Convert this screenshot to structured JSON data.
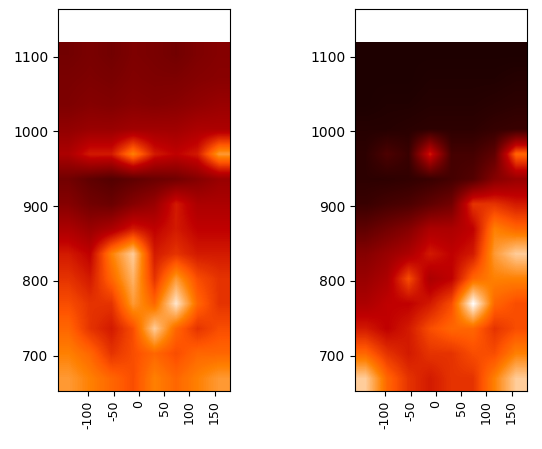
{
  "chart_data": [
    {
      "type": "heatmap",
      "xlim": [
        -160,
        180
      ],
      "ylim": [
        653,
        1164
      ],
      "xticks": [
        -100,
        -50,
        0,
        50,
        100,
        150
      ],
      "yticks": [
        700,
        800,
        900,
        1000,
        1100
      ],
      "x_range": [
        -160,
        180
      ],
      "y_range": [
        653,
        1120
      ],
      "color_range": [
        0,
        1
      ],
      "cells": [
        [
          0.3,
          0.32,
          0.3,
          0.33,
          0.32,
          0.3,
          0.33,
          0.35
        ],
        [
          0.32,
          0.33,
          0.32,
          0.34,
          0.33,
          0.33,
          0.35,
          0.36
        ],
        [
          0.33,
          0.35,
          0.34,
          0.36,
          0.35,
          0.36,
          0.38,
          0.4
        ],
        [
          0.38,
          0.4,
          0.4,
          0.42,
          0.42,
          0.42,
          0.45,
          0.45
        ],
        [
          0.45,
          0.55,
          0.55,
          0.75,
          0.55,
          0.5,
          0.55,
          0.8
        ],
        [
          0.3,
          0.25,
          0.22,
          0.25,
          0.28,
          0.3,
          0.35,
          0.4
        ],
        [
          0.35,
          0.3,
          0.28,
          0.35,
          0.4,
          0.55,
          0.45,
          0.45
        ],
        [
          0.45,
          0.4,
          0.45,
          0.55,
          0.5,
          0.55,
          0.5,
          0.5
        ],
        [
          0.55,
          0.5,
          0.75,
          0.9,
          0.55,
          0.6,
          0.55,
          0.55
        ],
        [
          0.6,
          0.55,
          0.7,
          0.85,
          0.6,
          0.8,
          0.65,
          0.6
        ],
        [
          0.65,
          0.6,
          0.6,
          0.8,
          0.7,
          0.95,
          0.7,
          0.6
        ],
        [
          0.7,
          0.6,
          0.55,
          0.65,
          0.9,
          0.7,
          0.6,
          0.65
        ],
        [
          0.75,
          0.7,
          0.6,
          0.65,
          0.7,
          0.65,
          0.7,
          0.7
        ],
        [
          0.8,
          0.75,
          0.7,
          0.65,
          0.75,
          0.7,
          0.75,
          0.8
        ]
      ]
    },
    {
      "type": "heatmap",
      "xlim": [
        -160,
        180
      ],
      "ylim": [
        653,
        1164
      ],
      "xticks": [
        -100,
        -50,
        0,
        50,
        100,
        150
      ],
      "yticks": [
        700,
        800,
        900,
        1000,
        1100
      ],
      "x_range": [
        -160,
        180
      ],
      "y_range": [
        653,
        1120
      ],
      "color_range": [
        0,
        1
      ],
      "cells": [
        [
          0.08,
          0.08,
          0.08,
          0.08,
          0.08,
          0.08,
          0.08,
          0.08
        ],
        [
          0.08,
          0.08,
          0.08,
          0.09,
          0.09,
          0.09,
          0.09,
          0.1
        ],
        [
          0.08,
          0.09,
          0.09,
          0.1,
          0.1,
          0.1,
          0.11,
          0.12
        ],
        [
          0.1,
          0.1,
          0.11,
          0.12,
          0.12,
          0.12,
          0.14,
          0.15
        ],
        [
          0.12,
          0.2,
          0.15,
          0.55,
          0.18,
          0.18,
          0.25,
          0.7
        ],
        [
          0.12,
          0.12,
          0.13,
          0.15,
          0.18,
          0.22,
          0.35,
          0.4
        ],
        [
          0.15,
          0.18,
          0.2,
          0.25,
          0.3,
          0.6,
          0.6,
          0.55
        ],
        [
          0.25,
          0.3,
          0.35,
          0.45,
          0.45,
          0.5,
          0.75,
          0.7
        ],
        [
          0.35,
          0.4,
          0.45,
          0.55,
          0.5,
          0.55,
          0.8,
          0.9
        ],
        [
          0.4,
          0.45,
          0.65,
          0.45,
          0.5,
          0.7,
          0.75,
          0.75
        ],
        [
          0.45,
          0.5,
          0.5,
          0.55,
          0.65,
          1.0,
          0.7,
          0.65
        ],
        [
          0.55,
          0.5,
          0.55,
          0.65,
          0.7,
          0.7,
          0.6,
          0.65
        ],
        [
          0.7,
          0.6,
          0.55,
          0.6,
          0.6,
          0.65,
          0.65,
          0.75
        ],
        [
          0.9,
          0.7,
          0.6,
          0.55,
          0.6,
          0.6,
          0.75,
          0.9
        ]
      ]
    }
  ]
}
